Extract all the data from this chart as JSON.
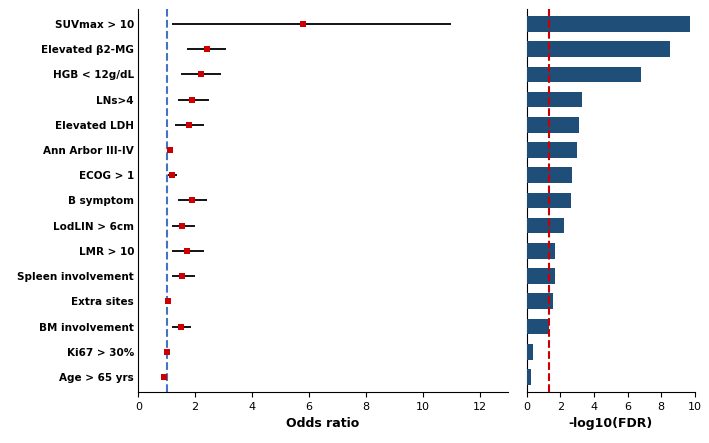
{
  "labels": [
    "SUVmax > 10",
    "Elevated β2-MG",
    "HGB < 12g/dL",
    "LNs>4",
    "Elevated LDH",
    "Ann Arbor III-IV",
    "ECOG > 1",
    "B symptom",
    "LodLIN > 6cm",
    "LMR > 10",
    "Spleen involvement",
    "Extra sites",
    "BM involvement",
    "Ki67 > 30%",
    "Age > 65 yrs"
  ],
  "or_values": [
    5.8,
    2.4,
    2.2,
    1.9,
    1.8,
    1.1,
    1.2,
    1.9,
    1.55,
    1.7,
    1.55,
    1.05,
    1.5,
    1.0,
    0.9
  ],
  "or_ci_low": [
    1.2,
    1.7,
    1.5,
    1.4,
    1.3,
    1.03,
    1.05,
    1.4,
    1.2,
    1.2,
    1.2,
    1.02,
    1.2,
    0.95,
    0.85
  ],
  "or_ci_high": [
    11.0,
    3.1,
    2.9,
    2.5,
    2.3,
    1.22,
    1.38,
    2.4,
    2.0,
    2.3,
    2.0,
    1.1,
    1.85,
    1.08,
    0.97
  ],
  "fdr_values": [
    9.7,
    8.5,
    6.8,
    3.3,
    3.1,
    3.0,
    2.7,
    2.65,
    2.2,
    1.7,
    1.65,
    1.55,
    1.35,
    0.4,
    0.25
  ],
  "or_xlim": [
    0,
    13
  ],
  "fdr_xlim": [
    0,
    10
  ],
  "or_xticks": [
    0,
    2,
    4,
    6,
    8,
    10,
    12
  ],
  "fdr_xticks": [
    0,
    2,
    4,
    6,
    8,
    10
  ],
  "or_vline": 1.0,
  "fdr_vline": 1.301,
  "bar_color": "#1f4e79",
  "point_color": "#cc0000",
  "or_vline_color": "#4472c4",
  "fdr_vline_color": "#cc0000",
  "xlabel_left": "Odds ratio",
  "xlabel_right": "-log10(FDR)",
  "background_color": "#ffffff"
}
